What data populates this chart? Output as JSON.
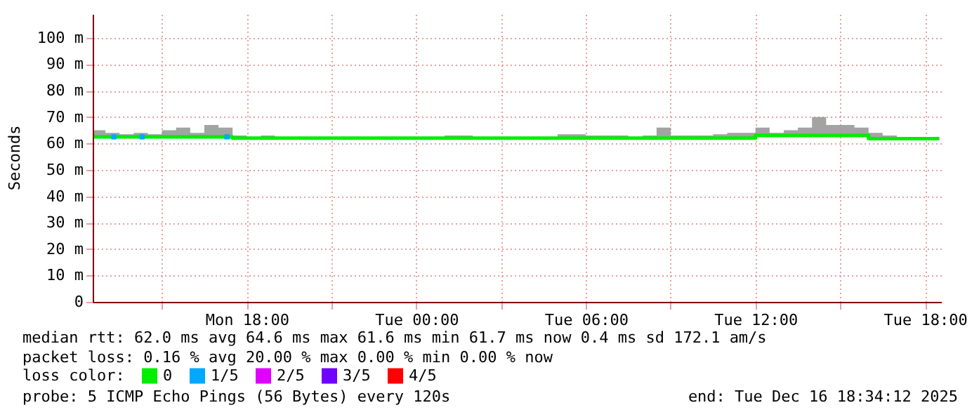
{
  "chart_data": {
    "type": "line",
    "ylabel": "Seconds",
    "legend_title": "loss color:",
    "legend": "bottom",
    "grid": true,
    "xlim": [
      "2025-12-15T12:33",
      "2025-12-16T18:34"
    ],
    "xticks": [
      {
        "value": "2025-12-15T15:00",
        "label": null
      },
      {
        "value": "2025-12-15T18:00",
        "label": "Mon 18:00"
      },
      {
        "value": "2025-12-15T21:00",
        "label": null
      },
      {
        "value": "2025-12-16T00:00",
        "label": "Tue 00:00"
      },
      {
        "value": "2025-12-16T03:00",
        "label": null
      },
      {
        "value": "2025-12-16T06:00",
        "label": "Tue 06:00"
      },
      {
        "value": "2025-12-16T09:00",
        "label": null
      },
      {
        "value": "2025-12-16T12:00",
        "label": "Tue 12:00"
      },
      {
        "value": "2025-12-16T15:00",
        "label": null
      },
      {
        "value": "2025-12-16T18:00",
        "label": "Tue 18:00"
      }
    ],
    "ylim": [
      0,
      109
    ],
    "yticks": [
      0,
      {
        "value": 10,
        "label": "10 m"
      },
      {
        "value": 20,
        "label": "20 m"
      },
      {
        "value": 30,
        "label": "30 m"
      },
      {
        "value": 40,
        "label": "40 m"
      },
      {
        "value": 50,
        "label": "50 m"
      },
      {
        "value": 60,
        "label": "60 m"
      },
      {
        "value": 70,
        "label": "70 m"
      },
      {
        "value": 80,
        "label": "80 m"
      },
      {
        "value": 90,
        "label": "90 m"
      },
      {
        "value": 100,
        "label": "100 m"
      }
    ],
    "x": [
      "2025-12-15T12:36",
      "2025-12-15T13:00",
      "2025-12-15T13:30",
      "2025-12-15T14:00",
      "2025-12-15T14:30",
      "2025-12-15T15:00",
      "2025-12-15T15:30",
      "2025-12-15T16:00",
      "2025-12-15T16:30",
      "2025-12-15T17:00",
      "2025-12-15T17:30",
      "2025-12-15T18:00",
      "2025-12-15T18:30",
      "2025-12-15T19:00",
      "2025-12-15T19:30",
      "2025-12-15T20:00",
      "2025-12-15T21:00",
      "2025-12-15T22:00",
      "2025-12-15T23:00",
      "2025-12-16T00:00",
      "2025-12-16T01:00",
      "2025-12-16T02:00",
      "2025-12-16T03:00",
      "2025-12-16T04:00",
      "2025-12-16T05:00",
      "2025-12-16T06:00",
      "2025-12-16T06:30",
      "2025-12-16T07:00",
      "2025-12-16T07:30",
      "2025-12-16T08:00",
      "2025-12-16T08:30",
      "2025-12-16T09:00",
      "2025-12-16T09:30",
      "2025-12-16T10:00",
      "2025-12-16T10:30",
      "2025-12-16T11:00",
      "2025-12-16T11:30",
      "2025-12-16T12:00",
      "2025-12-16T12:30",
      "2025-12-16T13:00",
      "2025-12-16T13:30",
      "2025-12-16T14:00",
      "2025-12-16T14:30",
      "2025-12-16T15:00",
      "2025-12-16T15:30",
      "2025-12-16T16:00",
      "2025-12-16T16:30",
      "2025-12-16T17:00",
      "2025-12-16T17:30",
      "2025-12-16T18:00",
      "2025-12-16T18:30"
    ],
    "series": [
      {
        "name": "0",
        "color": "#00ee00",
        "line_style": "solid",
        "values": [
          62.5,
          62.5,
          62.5,
          62.5,
          62.5,
          62.5,
          62.5,
          62.5,
          62.5,
          62.5,
          62,
          62,
          62,
          62,
          62,
          62,
          62,
          62,
          62,
          62,
          62,
          62,
          62,
          62,
          62,
          62,
          62,
          62,
          62,
          62,
          62,
          62,
          62,
          62,
          62,
          62,
          62,
          63,
          63,
          63,
          63,
          63,
          63,
          63,
          63,
          61.8,
          61.8,
          61.8,
          61.8,
          61.8,
          61.8
        ],
        "lower": [
          62,
          62,
          62,
          62,
          62,
          62,
          62,
          62,
          62,
          62,
          61.5,
          61.5,
          61.5,
          61.5,
          61.5,
          61.5,
          61.5,
          61.5,
          61.5,
          61.5,
          61.5,
          61.5,
          61.5,
          61.5,
          61.5,
          61.5,
          61.5,
          61.5,
          61.5,
          61.5,
          61.5,
          61.5,
          61.5,
          61.5,
          61.5,
          61.5,
          61.5,
          62.5,
          62.5,
          62.5,
          62.5,
          62.5,
          62.5,
          62.5,
          62.5,
          61.3,
          61.3,
          61.3,
          61.3,
          61.3,
          61.3
        ],
        "upper": [
          65,
          64,
          63.5,
          64,
          63.5,
          65,
          66,
          64,
          67,
          66,
          63,
          62.5,
          63,
          62.5,
          62.5,
          62.5,
          62.5,
          62.5,
          62.5,
          62.5,
          63,
          62.5,
          62.5,
          62.5,
          63.5,
          63,
          63,
          63,
          62.5,
          63,
          66,
          63,
          63,
          63,
          63.5,
          64,
          64,
          66,
          64,
          65,
          66,
          70,
          67,
          67,
          66,
          64,
          63,
          62.5,
          62.5,
          62.5,
          65
        ]
      },
      {
        "name": "1/5",
        "type": "scatter",
        "marker": "square",
        "color": "#00a8ff",
        "x": [
          "2025-12-15T13:18",
          "2025-12-15T14:18",
          "2025-12-15T17:18"
        ],
        "values": [
          62.5,
          62.5,
          62.5
        ]
      },
      {
        "name": "2/5",
        "type": "scatter",
        "marker": "square",
        "color": "#e000ff",
        "values": [
          null,
          null,
          null,
          null,
          null,
          null,
          null,
          null,
          null,
          null,
          null,
          null,
          null,
          null,
          null,
          null,
          null,
          null,
          null,
          null,
          null,
          null,
          null,
          null,
          null,
          null,
          null,
          null,
          null,
          null,
          null,
          null,
          null,
          null,
          null,
          null,
          null,
          null,
          null,
          null,
          null,
          null,
          null,
          null,
          null,
          null,
          null,
          null,
          null,
          null,
          null
        ]
      },
      {
        "name": "3/5",
        "type": "scatter",
        "marker": "square",
        "color": "#7000ff",
        "values": [
          null,
          null,
          null,
          null,
          null,
          null,
          null,
          null,
          null,
          null,
          null,
          null,
          null,
          null,
          null,
          null,
          null,
          null,
          null,
          null,
          null,
          null,
          null,
          null,
          null,
          null,
          null,
          null,
          null,
          null,
          null,
          null,
          null,
          null,
          null,
          null,
          null,
          null,
          null,
          null,
          null,
          null,
          null,
          null,
          null,
          null,
          null,
          null,
          null,
          null,
          null
        ]
      },
      {
        "name": "4/5",
        "type": "scatter",
        "marker": "square",
        "color": "#ff0000",
        "values": [
          null,
          null,
          null,
          null,
          null,
          null,
          null,
          null,
          null,
          null,
          null,
          null,
          null,
          null,
          null,
          null,
          null,
          null,
          null,
          null,
          null,
          null,
          null,
          null,
          null,
          null,
          null,
          null,
          null,
          null,
          null,
          null,
          null,
          null,
          null,
          null,
          null,
          null,
          null,
          null,
          null,
          null,
          null,
          null,
          null,
          null,
          null,
          null,
          null,
          null,
          null
        ]
      }
    ],
    "annotations": [
      "median rtt:  62.0 ms avg  64.6 ms max  61.6 ms min  61.7 ms now  0.4 ms sd  172.1   am/s",
      "packet loss: 0.16 % avg  20.00 % max  0.00 % min  0.00 % now",
      "probe:       5 ICMP Echo Pings (56 Bytes) every 120s",
      "end: Tue Dec 16 18:34:12 2025"
    ]
  }
}
